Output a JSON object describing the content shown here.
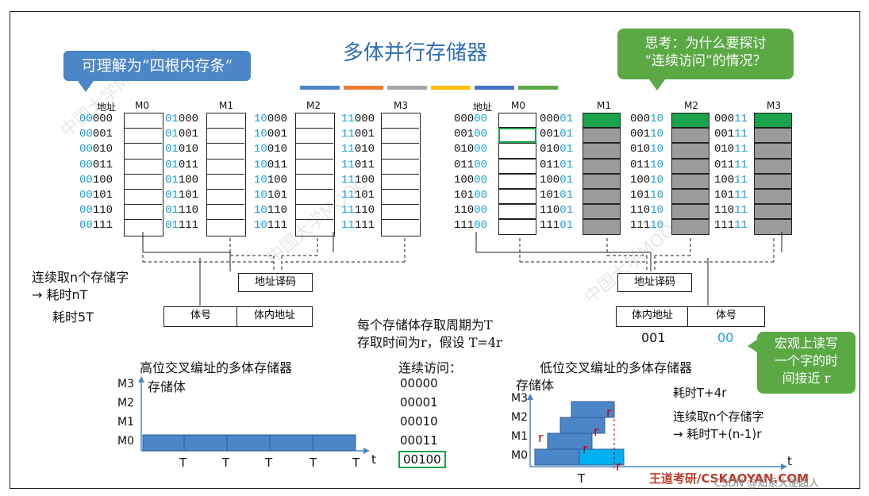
{
  "title": "多体并行存储器",
  "callout_left": "可理解为“四根内存条”",
  "callout_right": [
    "思考：为什么要探讨",
    "“连续访问”的情况？"
  ],
  "callout_macro": [
    "宏观上读写",
    "一个字的时",
    "间接近 r"
  ],
  "left_table": {
    "header_addr": "地址",
    "modules": [
      "M0",
      "M1",
      "M2",
      "M3"
    ],
    "high_bits": [
      "00",
      "01",
      "10",
      "11"
    ],
    "low_bits": [
      "000",
      "001",
      "010",
      "011",
      "100",
      "101",
      "110",
      "111"
    ]
  },
  "right_table": {
    "header_addr": "地址",
    "modules": [
      "M0",
      "M1",
      "M2",
      "M3"
    ],
    "low_bits_col": [
      "00",
      "01",
      "10",
      "11"
    ],
    "high_bits": [
      "000",
      "001",
      "010",
      "011",
      "100",
      "101",
      "110",
      "111"
    ]
  },
  "left_decoder": "地址译码",
  "left_fields": [
    "体号",
    "体内地址"
  ],
  "right_decoder": "地址译码",
  "right_fields": [
    "体内地址",
    "体号"
  ],
  "right_example": [
    "001",
    "00"
  ],
  "left_note": [
    "连续取n个存储字",
    "→ 耗时nT",
    "耗时5T"
  ],
  "center_note": [
    "每个存储体存取周期为T",
    "存取时间为r，假设 T=4r"
  ],
  "high_title": "高位交叉编址的多体存储器",
  "low_title": "低位交叉编址的多体存储器",
  "seq_title": "连续访问：",
  "seq": [
    "00000",
    "00001",
    "00010",
    "00011",
    "00100"
  ],
  "axis_ylabel": "存储体",
  "axis_t": "t",
  "axis_T": "T",
  "y_ticks": [
    "M3",
    "M2",
    "M1",
    "M0"
  ],
  "right_time": [
    "耗时T+4r",
    "连续取n个存储字",
    "→ 耗时T+(n-1)r"
  ],
  "r_label": "r",
  "footer": "王道考研/CSKAOYAN.COM",
  "footer2": "CSDN @知系大使超人",
  "colors": {
    "blue": "#4a86c8",
    "green": "#5aa945",
    "orange": "#ed7d31",
    "gray": "#a5a5a5",
    "yellow": "#ffc000",
    "darkblue": "#4472c4",
    "cyan": "#00b0f0",
    "bar_fill": "#4a86c8",
    "module_active": "#1aa34a",
    "module_gray": "#9b9b9b"
  }
}
